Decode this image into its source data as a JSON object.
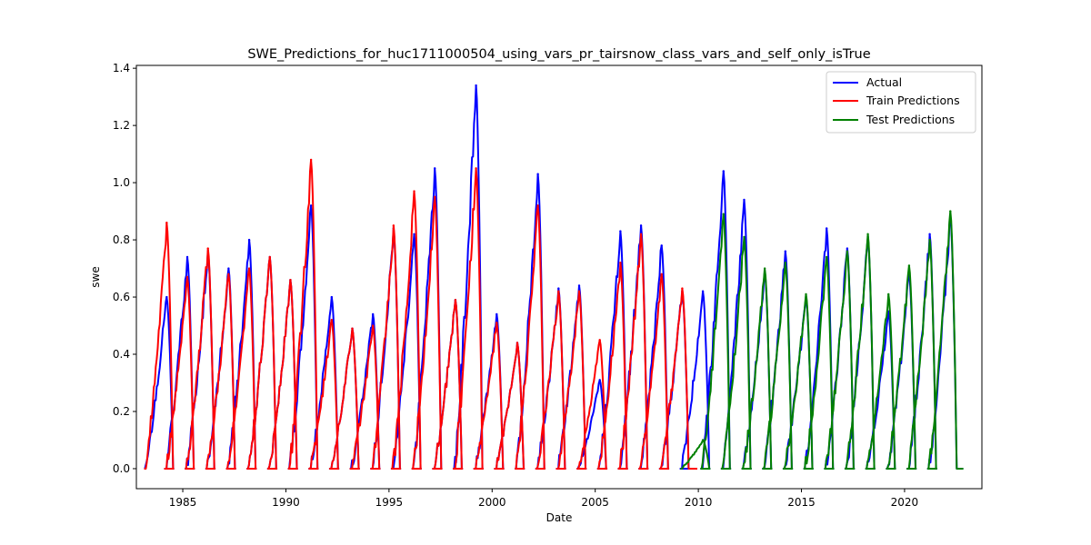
{
  "chart_data": {
    "type": "line",
    "title": "SWE_Predictions_for_huc1711000504_using_vars_pr_tairsnow_class_vars_and_self_only_isTrue",
    "xlabel": "Date",
    "ylabel": "swe",
    "xlim": [
      1982.75,
      2023.75
    ],
    "ylim": [
      -0.07,
      1.41
    ],
    "x_ticks": [
      1985,
      1990,
      1995,
      2000,
      2005,
      2010,
      2015,
      2020
    ],
    "y_ticks": [
      0.0,
      0.2,
      0.4,
      0.6,
      0.8,
      1.0,
      1.2,
      1.4
    ],
    "x_tick_labels": [
      "1985",
      "1990",
      "1995",
      "2000",
      "2005",
      "2010",
      "2015",
      "2020"
    ],
    "y_tick_labels": [
      "0.0",
      "0.2",
      "0.4",
      "0.6",
      "0.8",
      "1.0",
      "1.2",
      "1.4"
    ],
    "grid": false,
    "legend_position": "top-right",
    "series": [
      {
        "name": "Actual",
        "color": "#0000ff",
        "seasons": [
          {
            "year": 1984,
            "peak": 0.6
          },
          {
            "year": 1985,
            "peak": 0.74
          },
          {
            "year": 1986,
            "peak": 0.76
          },
          {
            "year": 1987,
            "peak": 0.7
          },
          {
            "year": 1988,
            "peak": 0.8
          },
          {
            "year": 1989,
            "peak": 0.74
          },
          {
            "year": 1990,
            "peak": 0.66
          },
          {
            "year": 1991,
            "peak": 0.92
          },
          {
            "year": 1992,
            "peak": 0.6
          },
          {
            "year": 1993,
            "peak": 0.49
          },
          {
            "year": 1994,
            "peak": 0.54
          },
          {
            "year": 1995,
            "peak": 0.84
          },
          {
            "year": 1996,
            "peak": 0.82
          },
          {
            "year": 1997,
            "peak": 1.05
          },
          {
            "year": 1998,
            "peak": 0.59
          },
          {
            "year": 1999,
            "peak": 1.34
          },
          {
            "year": 2000,
            "peak": 0.54
          },
          {
            "year": 2001,
            "peak": 0.44
          },
          {
            "year": 2002,
            "peak": 1.03
          },
          {
            "year": 2003,
            "peak": 0.63
          },
          {
            "year": 2004,
            "peak": 0.64
          },
          {
            "year": 2005,
            "peak": 0.31
          },
          {
            "year": 2006,
            "peak": 0.83
          },
          {
            "year": 2007,
            "peak": 0.85
          },
          {
            "year": 2008,
            "peak": 0.78
          },
          {
            "year": 2009,
            "peak": 0.62
          },
          {
            "year": 2010,
            "peak": 0.62
          },
          {
            "year": 2011,
            "peak": 1.04
          },
          {
            "year": 2012,
            "peak": 0.94
          },
          {
            "year": 2013,
            "peak": 0.69
          },
          {
            "year": 2014,
            "peak": 0.76
          },
          {
            "year": 2015,
            "peak": 0.6
          },
          {
            "year": 2016,
            "peak": 0.84
          },
          {
            "year": 2017,
            "peak": 0.77
          },
          {
            "year": 2018,
            "peak": 0.81
          },
          {
            "year": 2019,
            "peak": 0.55
          },
          {
            "year": 2020,
            "peak": 0.68
          },
          {
            "year": 2021,
            "peak": 0.82
          },
          {
            "year": 2022,
            "peak": 0.88
          }
        ]
      },
      {
        "name": "Train Predictions",
        "color": "#ff0000",
        "seasons": [
          {
            "year": 1984,
            "peak": 0.86
          },
          {
            "year": 1985,
            "peak": 0.67
          },
          {
            "year": 1986,
            "peak": 0.77
          },
          {
            "year": 1987,
            "peak": 0.68
          },
          {
            "year": 1988,
            "peak": 0.7
          },
          {
            "year": 1989,
            "peak": 0.74
          },
          {
            "year": 1990,
            "peak": 0.66
          },
          {
            "year": 1991,
            "peak": 1.08
          },
          {
            "year": 1992,
            "peak": 0.52
          },
          {
            "year": 1993,
            "peak": 0.49
          },
          {
            "year": 1994,
            "peak": 0.5
          },
          {
            "year": 1995,
            "peak": 0.85
          },
          {
            "year": 1996,
            "peak": 0.97
          },
          {
            "year": 1997,
            "peak": 0.95
          },
          {
            "year": 1998,
            "peak": 0.59
          },
          {
            "year": 1999,
            "peak": 1.05
          },
          {
            "year": 2000,
            "peak": 0.51
          },
          {
            "year": 2001,
            "peak": 0.44
          },
          {
            "year": 2002,
            "peak": 0.92
          },
          {
            "year": 2003,
            "peak": 0.62
          },
          {
            "year": 2004,
            "peak": 0.62
          },
          {
            "year": 2005,
            "peak": 0.45
          },
          {
            "year": 2006,
            "peak": 0.72
          },
          {
            "year": 2007,
            "peak": 0.82
          },
          {
            "year": 2008,
            "peak": 0.68
          },
          {
            "year": 2009,
            "peak": 0.63
          }
        ]
      },
      {
        "name": "Test Predictions",
        "color": "#008000",
        "seasons": [
          {
            "year": 2010,
            "peak": 0.1
          },
          {
            "year": 2011,
            "peak": 0.89
          },
          {
            "year": 2012,
            "peak": 0.81
          },
          {
            "year": 2013,
            "peak": 0.7
          },
          {
            "year": 2014,
            "peak": 0.72
          },
          {
            "year": 2015,
            "peak": 0.61
          },
          {
            "year": 2016,
            "peak": 0.74
          },
          {
            "year": 2017,
            "peak": 0.76
          },
          {
            "year": 2018,
            "peak": 0.82
          },
          {
            "year": 2019,
            "peak": 0.61
          },
          {
            "year": 2020,
            "peak": 0.71
          },
          {
            "year": 2021,
            "peak": 0.8
          },
          {
            "year": 2022,
            "peak": 0.9
          }
        ]
      }
    ]
  }
}
